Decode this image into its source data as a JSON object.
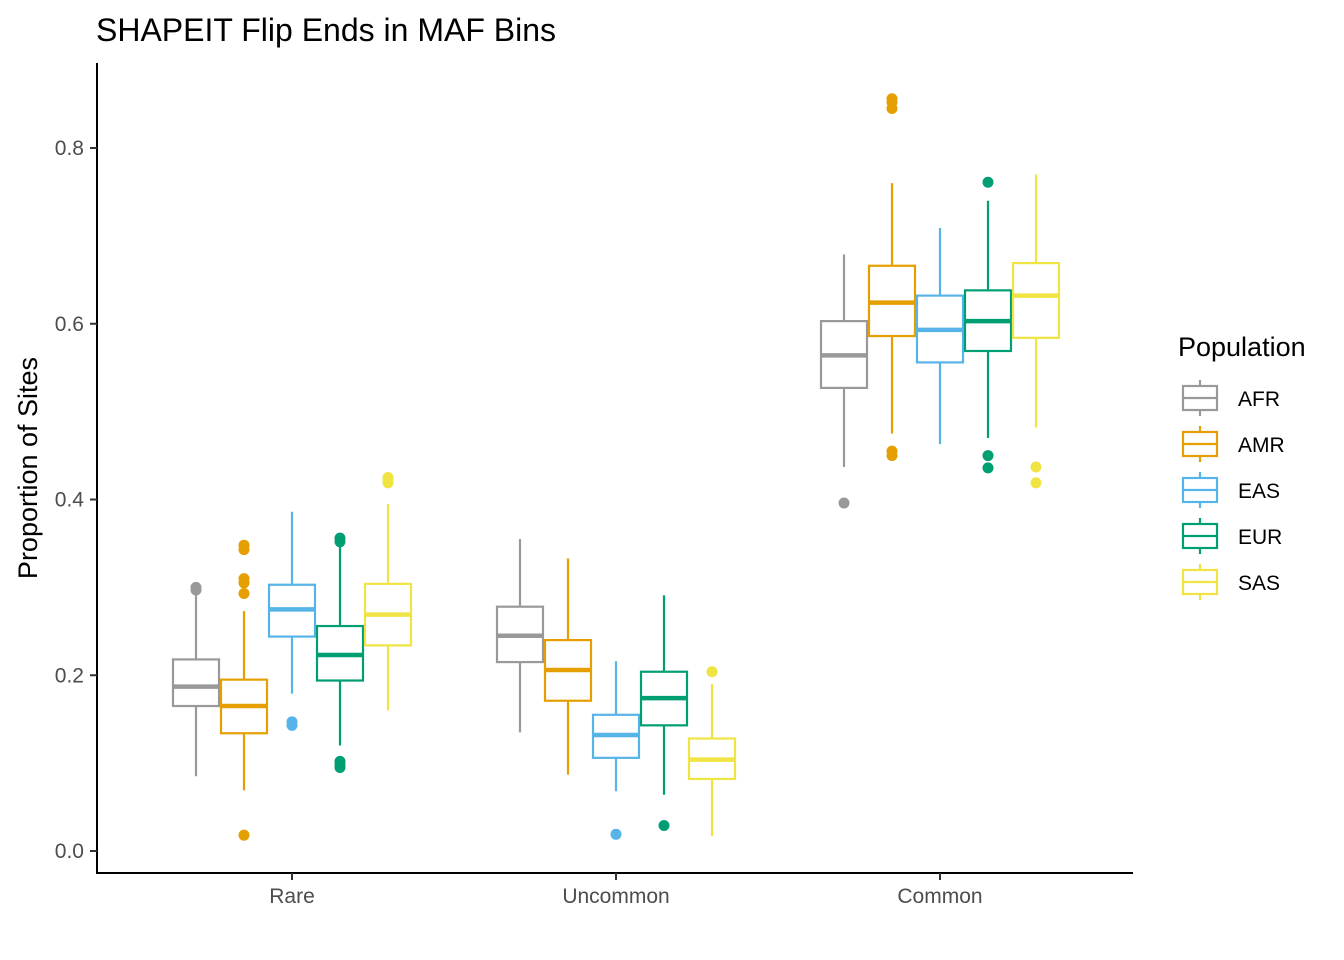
{
  "chart_data": {
    "type": "boxplot",
    "title": "SHAPEIT Flip Ends in MAF Bins",
    "xlabel": "",
    "ylabel": "Proportion of Sites",
    "ylim": [
      -0.025,
      0.895
    ],
    "yticks": [
      0.0,
      0.2,
      0.4,
      0.6,
      0.8
    ],
    "ytick_labels": [
      "0.0",
      "0.2",
      "0.4",
      "0.6",
      "0.8"
    ],
    "categories": [
      "Rare",
      "Uncommon",
      "Common"
    ],
    "legend": {
      "title": "Population",
      "position": "right"
    },
    "grid": false,
    "series": [
      {
        "name": "AFR",
        "color": "#999999",
        "boxes": [
          {
            "whisker_low": 0.085,
            "q1": 0.165,
            "median": 0.187,
            "q3": 0.218,
            "whisker_high": 0.296,
            "outliers": [
              0.297,
              0.3
            ]
          },
          {
            "whisker_low": 0.135,
            "q1": 0.215,
            "median": 0.245,
            "q3": 0.278,
            "whisker_high": 0.355,
            "outliers": []
          },
          {
            "whisker_low": 0.437,
            "q1": 0.527,
            "median": 0.564,
            "q3": 0.603,
            "whisker_high": 0.679,
            "outliers": [
              0.396
            ]
          }
        ]
      },
      {
        "name": "AMR",
        "color": "#E69F00",
        "boxes": [
          {
            "whisker_low": 0.069,
            "q1": 0.134,
            "median": 0.165,
            "q3": 0.195,
            "whisker_high": 0.273,
            "outliers": [
              0.018,
              0.293,
              0.305,
              0.31,
              0.343,
              0.348
            ]
          },
          {
            "whisker_low": 0.087,
            "q1": 0.171,
            "median": 0.206,
            "q3": 0.24,
            "whisker_high": 0.333,
            "outliers": []
          },
          {
            "whisker_low": 0.475,
            "q1": 0.586,
            "median": 0.624,
            "q3": 0.666,
            "whisker_high": 0.76,
            "outliers": [
              0.45,
              0.455,
              0.845,
              0.852,
              0.856
            ]
          }
        ]
      },
      {
        "name": "EAS",
        "color": "#56B4E9",
        "boxes": [
          {
            "whisker_low": 0.179,
            "q1": 0.244,
            "median": 0.275,
            "q3": 0.303,
            "whisker_high": 0.386,
            "outliers": [
              0.143,
              0.147
            ]
          },
          {
            "whisker_low": 0.068,
            "q1": 0.106,
            "median": 0.132,
            "q3": 0.155,
            "whisker_high": 0.216,
            "outliers": [
              0.019
            ]
          },
          {
            "whisker_low": 0.463,
            "q1": 0.556,
            "median": 0.593,
            "q3": 0.632,
            "whisker_high": 0.709,
            "outliers": []
          }
        ]
      },
      {
        "name": "EUR",
        "color": "#009E73",
        "boxes": [
          {
            "whisker_low": 0.12,
            "q1": 0.194,
            "median": 0.223,
            "q3": 0.256,
            "whisker_high": 0.351,
            "outliers": [
              0.095,
              0.098,
              0.102,
              0.352,
              0.356
            ]
          },
          {
            "whisker_low": 0.064,
            "q1": 0.143,
            "median": 0.174,
            "q3": 0.204,
            "whisker_high": 0.291,
            "outliers": [
              0.029
            ]
          },
          {
            "whisker_low": 0.47,
            "q1": 0.569,
            "median": 0.603,
            "q3": 0.638,
            "whisker_high": 0.74,
            "outliers": [
              0.436,
              0.45,
              0.761
            ]
          }
        ]
      },
      {
        "name": "SAS",
        "color": "#F0E442",
        "boxes": [
          {
            "whisker_low": 0.16,
            "q1": 0.234,
            "median": 0.269,
            "q3": 0.304,
            "whisker_high": 0.395,
            "outliers": [
              0.419,
              0.423,
              0.425
            ]
          },
          {
            "whisker_low": 0.017,
            "q1": 0.082,
            "median": 0.104,
            "q3": 0.128,
            "whisker_high": 0.19,
            "outliers": [
              0.204
            ]
          },
          {
            "whisker_low": 0.482,
            "q1": 0.584,
            "median": 0.632,
            "q3": 0.669,
            "whisker_high": 0.77,
            "outliers": [
              0.419,
              0.437
            ]
          }
        ]
      }
    ]
  }
}
